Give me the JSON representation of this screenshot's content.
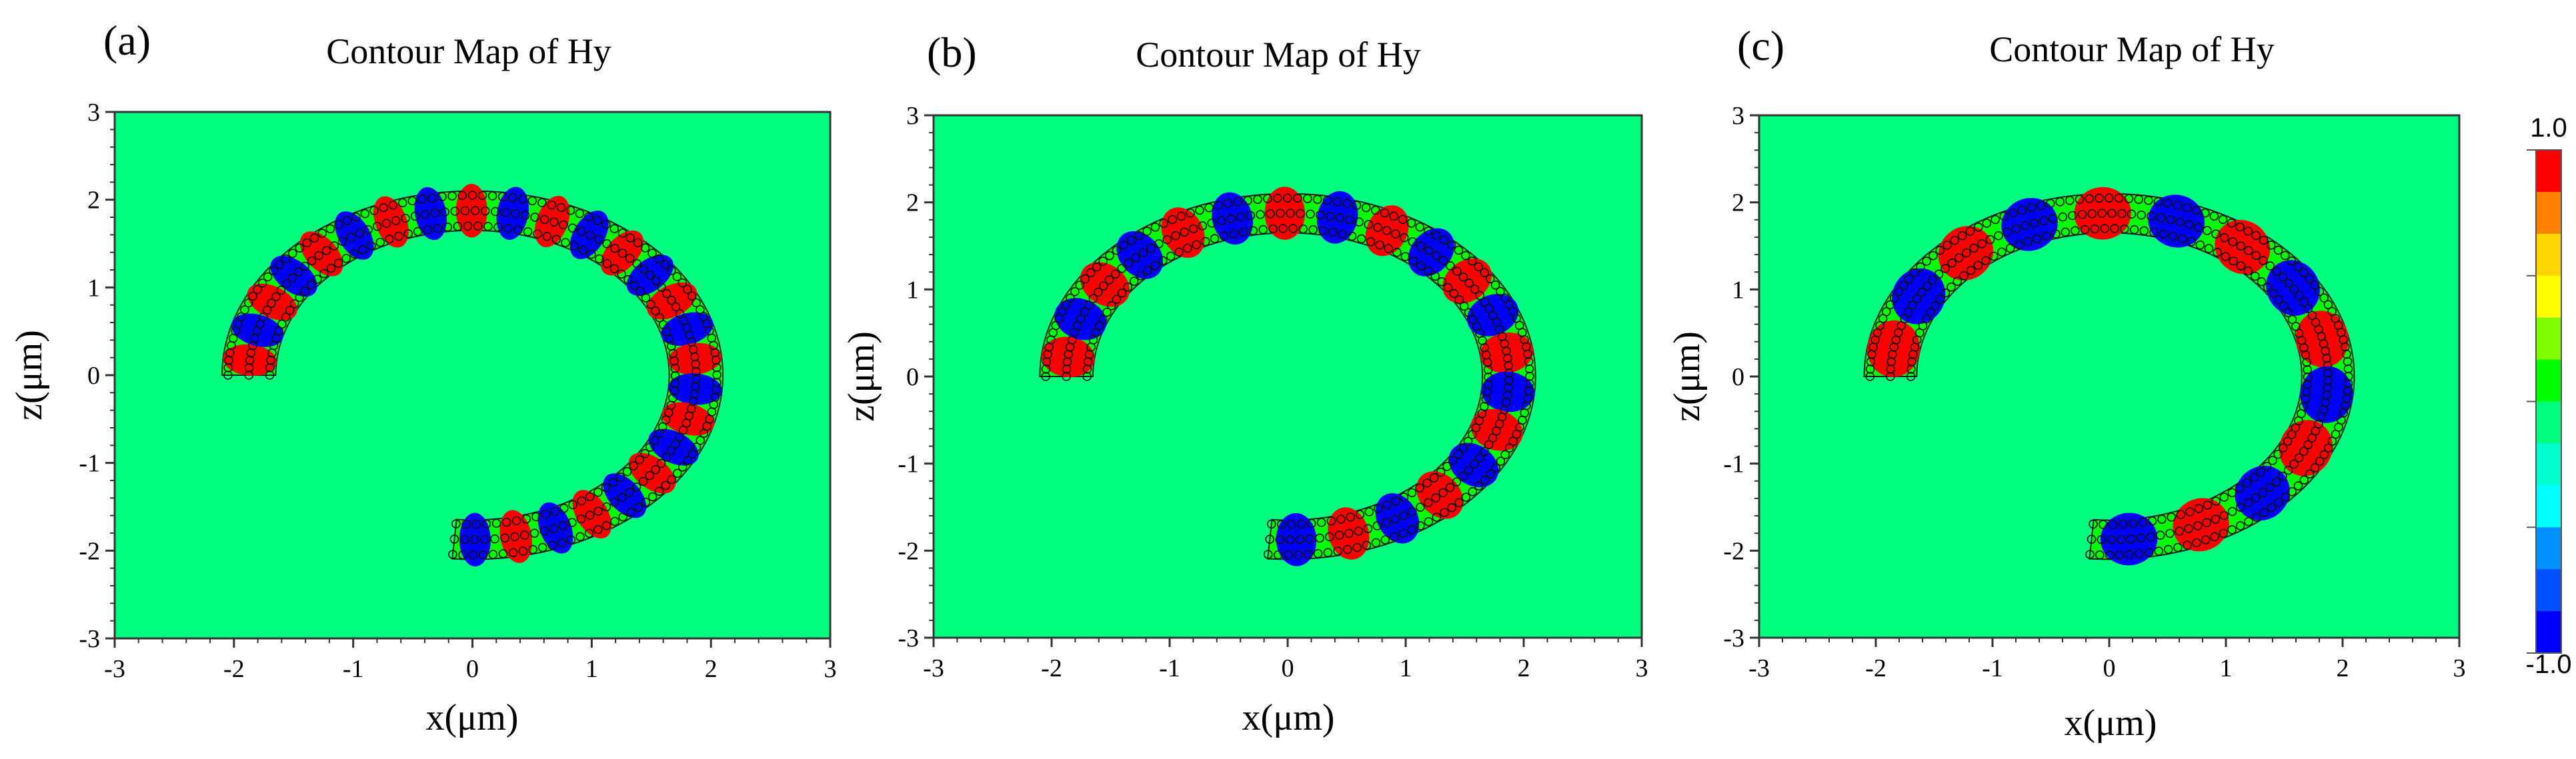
{
  "figure": {
    "colorbar": {
      "max_label": "1.0",
      "min_label": "-1.0",
      "colors": [
        "#ff0000",
        "#ff7f00",
        "#ffd400",
        "#ffff00",
        "#7fff00",
        "#00ff00",
        "#00ff7f",
        "#00ffd0",
        "#00ffff",
        "#0090ff",
        "#0050ff",
        "#0000ff"
      ],
      "range": [
        -1.0,
        1.0
      ]
    }
  },
  "chart_data": [
    {
      "type": "heatmap",
      "panel_label": "(a)",
      "title": "Contour Map of Hy",
      "xlabel": "x(μm)",
      "ylabel": "z(μm)",
      "xlim": [
        -3,
        3
      ],
      "ylim": [
        -3,
        3
      ],
      "xticks": [
        "-3",
        "-2",
        "-1",
        "0",
        "1",
        "2",
        "3"
      ],
      "yticks": [
        "-3",
        "-2",
        "-1",
        "0",
        "1",
        "2",
        "3"
      ],
      "background_value": 0.0,
      "structure": {
        "kind": "ring waveguide of holes",
        "center": [
          0.0,
          0.0
        ],
        "inner_radius": 1.65,
        "outer_radius": 2.1,
        "start_point": [
          -1.85,
          0.0
        ],
        "end_point": [
          -0.15,
          -1.85
        ],
        "lobes": 26,
        "field_amplitude": 1.0
      }
    },
    {
      "type": "heatmap",
      "panel_label": "(b)",
      "title": "Contour Map of Hy",
      "xlabel": "x(μm)",
      "ylabel": "z(μm)",
      "xlim": [
        -3,
        3
      ],
      "ylim": [
        -3,
        3
      ],
      "xticks": [
        "-3",
        "-2",
        "-1",
        "0",
        "1",
        "2",
        "3"
      ],
      "yticks": [
        "-3",
        "-2",
        "-1",
        "0",
        "1",
        "2",
        "3"
      ],
      "background_value": 0.0,
      "structure": {
        "kind": "ring waveguide of holes",
        "center": [
          0.0,
          0.0
        ],
        "inner_radius": 1.65,
        "outer_radius": 2.1,
        "start_point": [
          -1.85,
          0.0
        ],
        "end_point": [
          -0.15,
          -1.85
        ],
        "lobes": 20,
        "field_amplitude": 1.0
      }
    },
    {
      "type": "heatmap",
      "panel_label": "(c)",
      "title": "Contour Map of Hy",
      "xlabel": "x(μm)",
      "ylabel": "z(μm)",
      "xlim": [
        -3,
        3
      ],
      "ylim": [
        -3,
        3
      ],
      "xticks": [
        "-3",
        "-2",
        "-1",
        "0",
        "1",
        "2",
        "3"
      ],
      "yticks": [
        "-3",
        "-2",
        "-1",
        "0",
        "1",
        "2",
        "3"
      ],
      "background_value": 0.0,
      "structure": {
        "kind": "ring waveguide of holes",
        "center": [
          0.0,
          0.0
        ],
        "inner_radius": 1.65,
        "outer_radius": 2.1,
        "start_point": [
          -1.85,
          0.0
        ],
        "end_point": [
          -0.15,
          -1.85
        ],
        "lobes": 14,
        "field_amplitude": 1.0
      }
    }
  ]
}
